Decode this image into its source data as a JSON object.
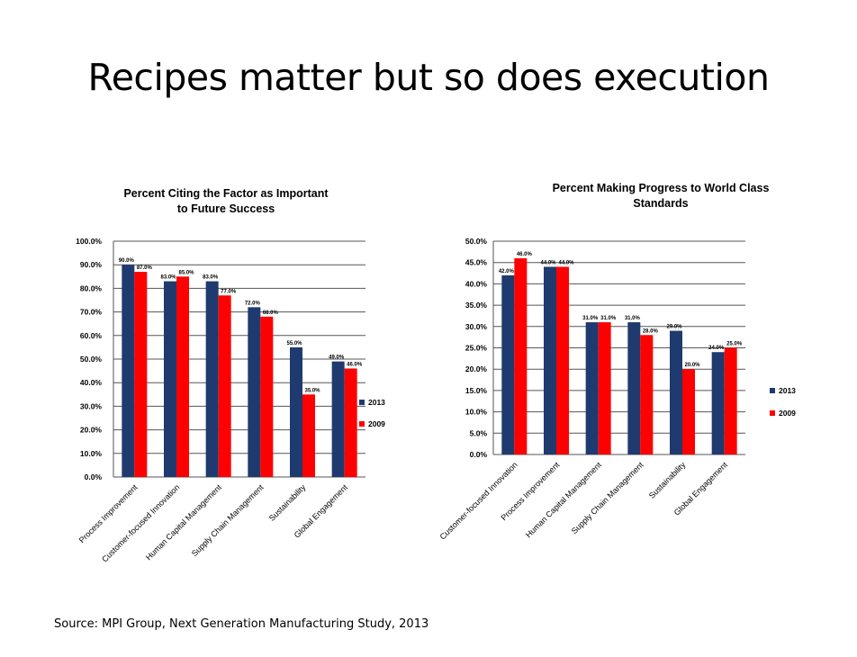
{
  "slide": {
    "title": "Recipes matter but so does execution",
    "source": "Source:  MPI Group, Next Generation  Manufacturing Study, 2013"
  },
  "colors": {
    "series_2013": "#1F3A6E",
    "series_2009": "#FF0000"
  },
  "chart_data": [
    {
      "type": "bar",
      "title": [
        "Percent Citing the Factor as Important",
        "to Future Success"
      ],
      "categories": [
        "Process Improvement",
        "Customer-focused Innovation",
        "Human Capital Management",
        "Supply Chain Management",
        "Sustainability",
        "Global Engagement"
      ],
      "series": [
        {
          "name": "2013",
          "values": [
            90.0,
            83.0,
            83.0,
            72.0,
            55.0,
            49.0
          ]
        },
        {
          "name": "2009",
          "values": [
            87.0,
            85.0,
            77.0,
            68.0,
            35.0,
            46.0
          ]
        }
      ],
      "data_labels": [
        [
          "90.0%",
          "83.0%",
          "83.0%",
          "72.0%",
          "55.0%",
          "49.0%"
        ],
        [
          "87.0%",
          "85.0%",
          "77.0%",
          "68.0%",
          "35.0%",
          "46.0%"
        ]
      ],
      "ylim": [
        0,
        100
      ],
      "yticks": [
        "0.0%",
        "10.0%",
        "20.0%",
        "30.0%",
        "40.0%",
        "50.0%",
        "60.0%",
        "70.0%",
        "80.0%",
        "90.0%",
        "100.0%"
      ],
      "grid": true,
      "legend": "right"
    },
    {
      "type": "bar",
      "title": [
        "Percent Making  Progress to World Class",
        "Standards"
      ],
      "categories": [
        "Customer-focused Innovation",
        "Process Improvement",
        "Human Capital Management",
        "Supply Chain Management",
        "Sustainability",
        "Global Engagement"
      ],
      "series": [
        {
          "name": "2013",
          "values": [
            42.0,
            44.0,
            31.0,
            31.0,
            29.0,
            24.0
          ]
        },
        {
          "name": "2009",
          "values": [
            46.0,
            44.0,
            31.0,
            28.0,
            20.0,
            25.0
          ]
        }
      ],
      "data_labels": [
        [
          "42.0%",
          "44.0%",
          "31.0%",
          "31.0%",
          "29.0%",
          "24.0%"
        ],
        [
          "46.0%",
          "44.0%",
          "31.0%",
          "28.0%",
          "20.0%",
          "25.0%"
        ]
      ],
      "ylim": [
        0,
        50
      ],
      "yticks": [
        "0.0%",
        "5.0%",
        "10.0%",
        "15.0%",
        "20.0%",
        "25.0%",
        "30.0%",
        "35.0%",
        "40.0%",
        "45.0%",
        "50.0%"
      ],
      "grid": true,
      "legend": "right"
    }
  ]
}
